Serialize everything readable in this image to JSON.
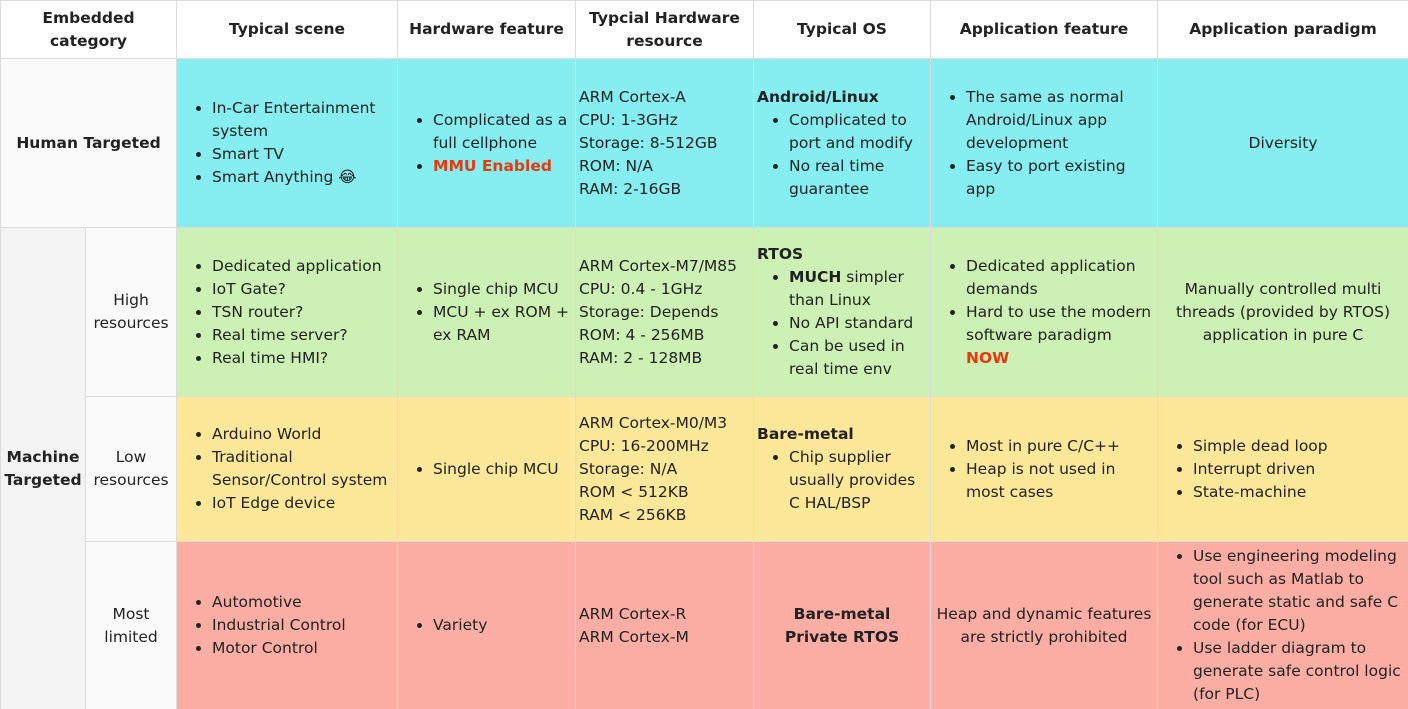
{
  "header": [
    "Embedded category",
    "Typical scene",
    "Hardware feature",
    "Typcial Hardware resource",
    "Typical OS",
    "Application feature",
    "Application paradigm"
  ],
  "groups": [
    {
      "category": "Human Targeted",
      "rows": [
        {
          "cells": [
            {
              "items": [
                "In-Car Entertainment system",
                "Smart TV",
                "Smart Anything 😂"
              ]
            },
            {
              "items": [
                "Complicated as a full cellphone",
                [
                  {
                    "text": "MMU Enabled",
                    "style": "alert"
                  }
                ]
              ]
            },
            {
              "lines": [
                "ARM Cortex-A",
                "CPU: 1-3GHz",
                "Storage: 8-512GB",
                "ROM: N/A",
                "RAM: 2-16GB"
              ]
            },
            {
              "heading": "Android/Linux",
              "items": [
                "Complicated to port and modify",
                "No real time guarantee"
              ]
            },
            {
              "items": [
                "The same as normal Android/Linux app development",
                "Easy to port existing app"
              ]
            },
            {
              "center": [
                "Diversity"
              ]
            }
          ]
        }
      ]
    },
    {
      "category": "Machine Targeted",
      "rows": [
        {
          "sub": "High resources",
          "cells": [
            {
              "items": [
                "Dedicated application",
                "IoT Gate?",
                "TSN router?",
                "Real time server?",
                "Real time HMI?"
              ]
            },
            {
              "items": [
                "Single chip MCU",
                "MCU + ex ROM + ex RAM"
              ]
            },
            {
              "lines": [
                "ARM Cortex-M7/M85",
                "CPU: 0.4 - 1GHz",
                "Storage: Depends",
                "ROM: 4 - 256MB",
                "RAM: 2 - 128MB"
              ]
            },
            {
              "heading": "RTOS",
              "items": [
                [
                  {
                    "text": "MUCH",
                    "style": "bold"
                  },
                  {
                    "text": " simpler than Linux"
                  }
                ],
                "No API standard",
                "Can be used in real time env"
              ]
            },
            {
              "items": [
                "Dedicated application demands",
                [
                  {
                    "text": "Hard to use the modern software paradigm "
                  },
                  {
                    "text": "NOW",
                    "style": "alert"
                  }
                ]
              ]
            },
            {
              "center": [
                "Manually controlled multi threads (provided by RTOS) application in pure C"
              ]
            }
          ]
        },
        {
          "sub": "Low resources",
          "cells": [
            {
              "items": [
                "Arduino World",
                "Traditional Sensor/Control system",
                "IoT Edge device"
              ]
            },
            {
              "items": [
                "Single chip MCU"
              ]
            },
            {
              "lines": [
                "ARM Cortex-M0/M3",
                "CPU: 16-200MHz",
                "Storage: N/A",
                "ROM < 512KB",
                "RAM < 256KB"
              ]
            },
            {
              "heading": "Bare-metal",
              "items": [
                "Chip supplier usually provides C HAL/BSP"
              ]
            },
            {
              "items": [
                "Most in pure C/C++",
                "Heap is not used in most cases"
              ]
            },
            {
              "items": [
                "Simple dead loop",
                "Interrupt driven",
                "State-machine"
              ]
            }
          ]
        },
        {
          "sub": "Most limited",
          "cells": [
            {
              "items": [
                "Automotive",
                "Industrial Control",
                "Motor Control"
              ]
            },
            {
              "items": [
                "Variety"
              ]
            },
            {
              "lines": [
                "ARM Cortex-R",
                "ARM Cortex-M"
              ]
            },
            {
              "center": [
                "Bare-metal",
                "Private RTOS"
              ],
              "style": "bold"
            },
            {
              "center": [
                "Heap and dynamic features are strictly prohibited"
              ]
            },
            {
              "items": [
                "Use engineering modeling tool such as Matlab to generate static and safe C code (for ECU)",
                "Use ladder diagram to generate safe control logic (for PLC)"
              ]
            }
          ]
        }
      ]
    }
  ]
}
